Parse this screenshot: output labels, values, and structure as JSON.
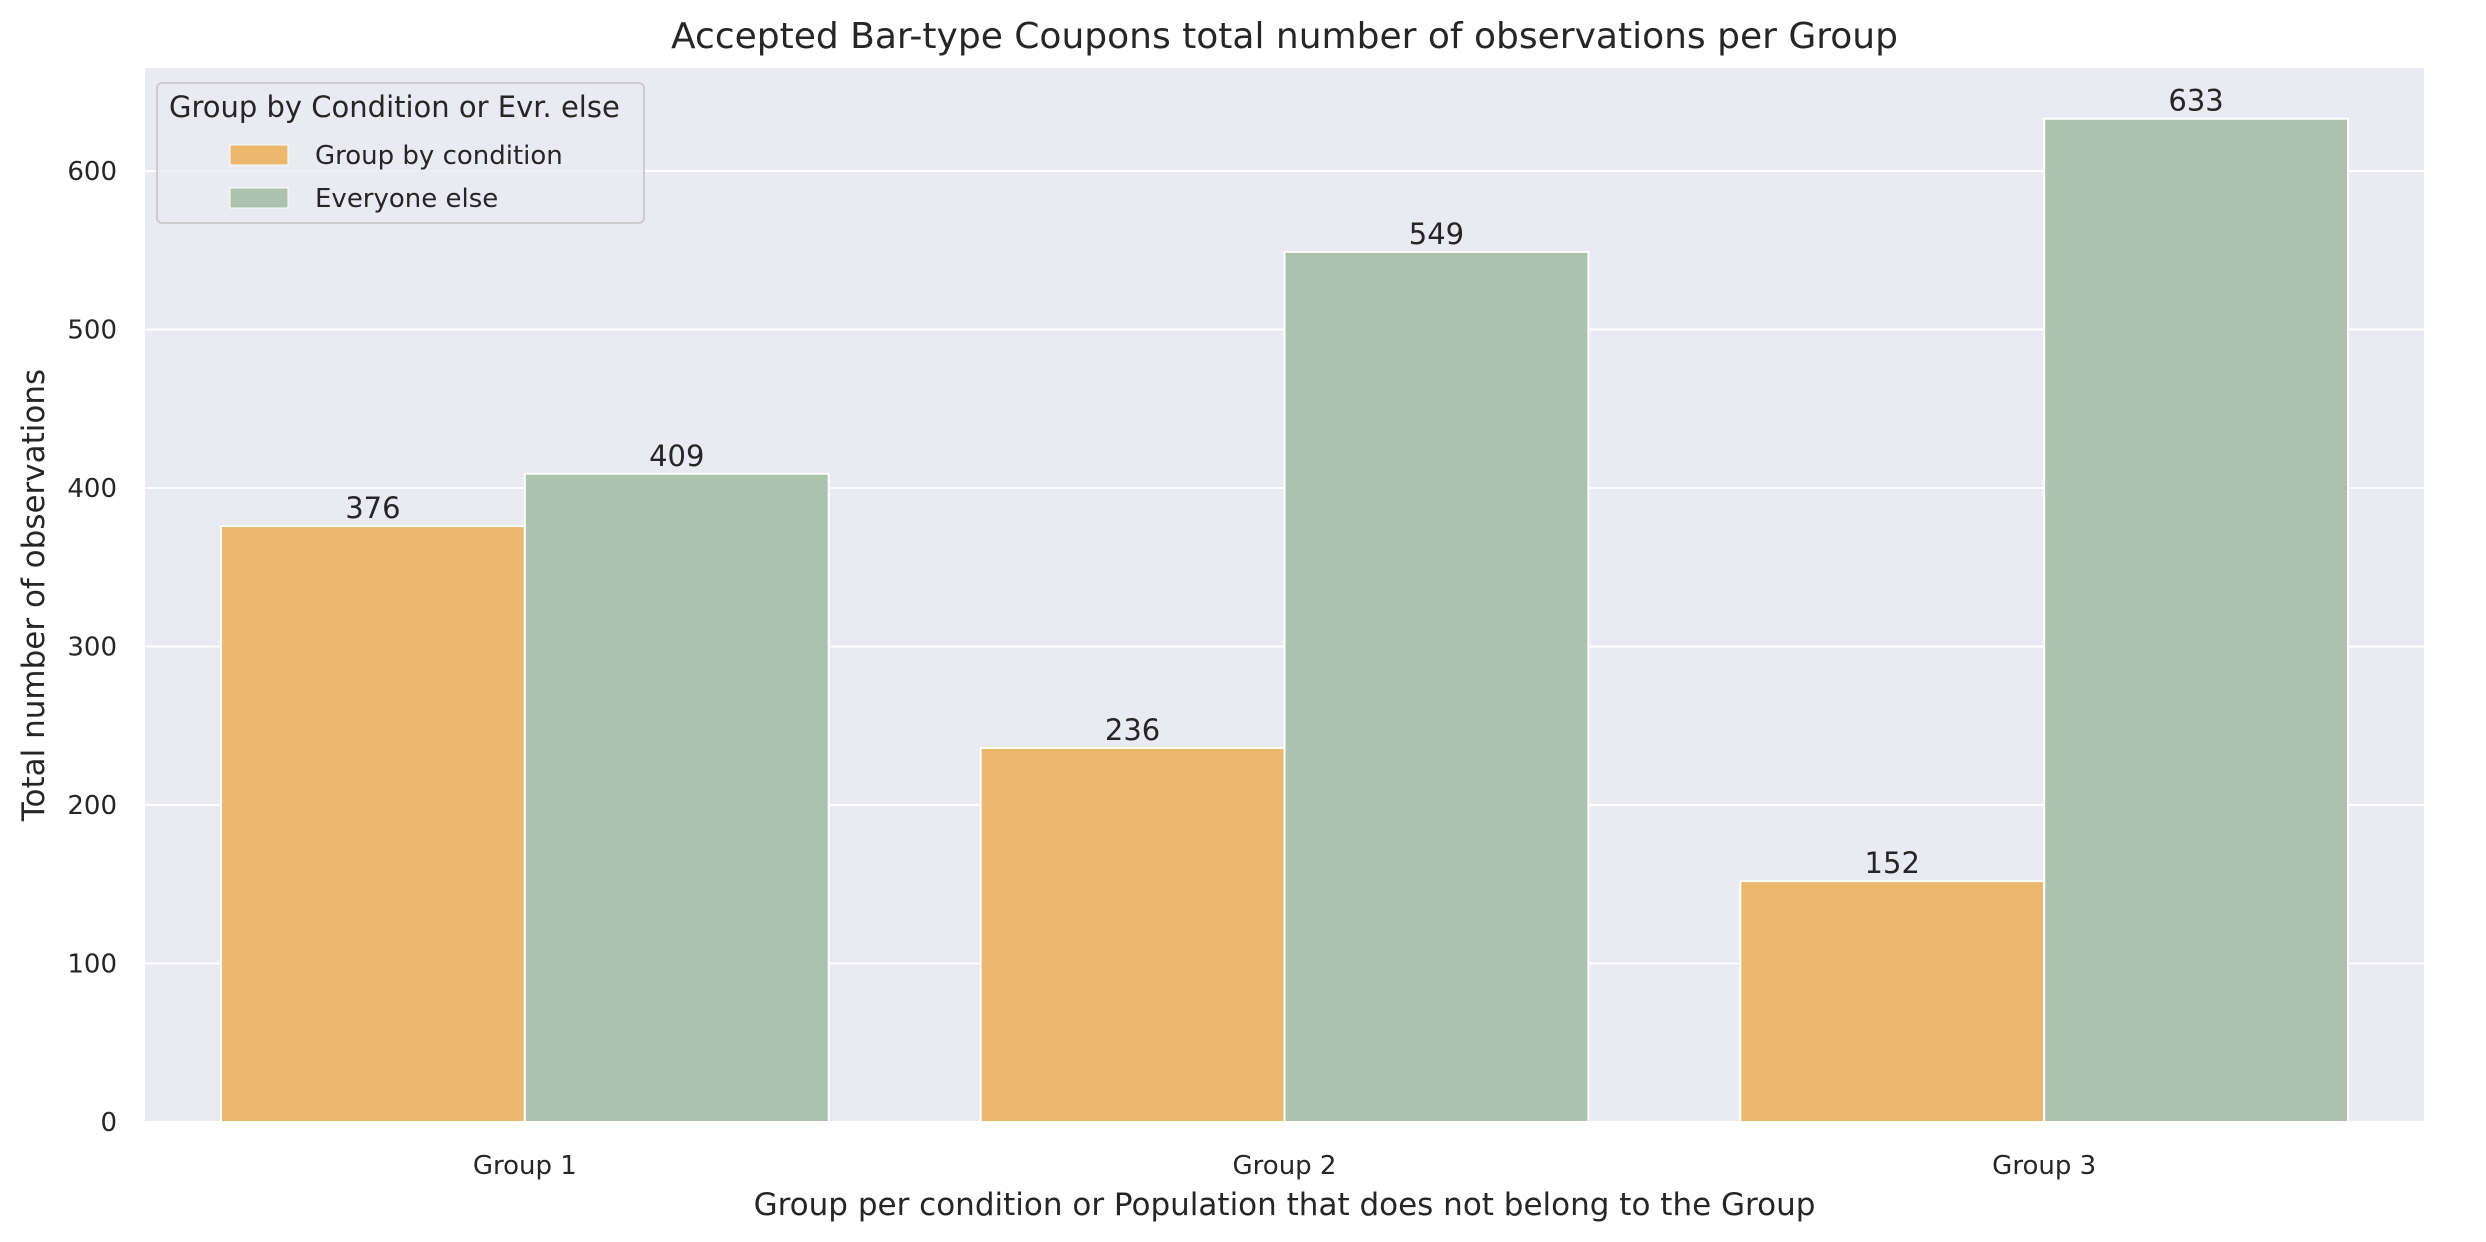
{
  "chart_data": {
    "type": "bar",
    "title": "Accepted Bar-type Coupons total number of observations per Group",
    "xlabel": "Group per condition or Population that does not belong to the Group",
    "ylabel": "Total number of observations",
    "categories": [
      "Group 1",
      "Group 2",
      "Group 3"
    ],
    "series": [
      {
        "name": "Group by condition",
        "values": [
          376,
          236,
          152
        ],
        "color": "#ebb86d"
      },
      {
        "name": "Everyone else",
        "values": [
          409,
          549,
          633
        ],
        "color": "#adc2ad"
      }
    ],
    "ylim": [
      0,
      665
    ],
    "yticks": [
      0,
      100,
      200,
      300,
      400,
      500,
      600
    ],
    "grid": true,
    "legend": {
      "title": "Group by Condition or Evr. else",
      "placement": "top-left"
    },
    "colors": {
      "plot_background": "#eaeaf2",
      "grid": "#ffffff",
      "text": "#262626"
    }
  }
}
